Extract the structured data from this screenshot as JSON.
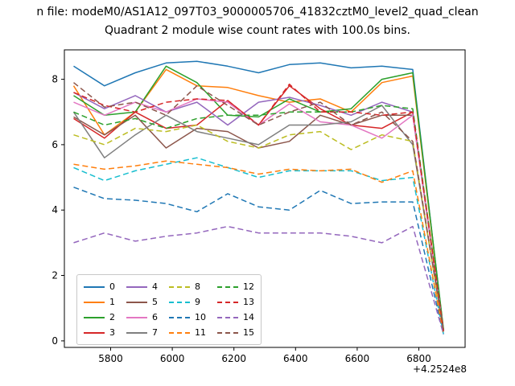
{
  "chart_data": {
    "type": "line",
    "title_line1": "n file: modeM0/AS1A12_097T03_9000005706_41832cztM0_level2_quad_clean",
    "title_line2": "Quadrant 2 module wise count rates with 100.0s bins.",
    "xlabel": "",
    "ylabel": "",
    "xlim": [
      5650,
      6950
    ],
    "ylim": [
      -0.2,
      8.9
    ],
    "xticks": [
      5800,
      6000,
      6200,
      6400,
      6600,
      6800
    ],
    "yticks": [
      0,
      2,
      4,
      6,
      8
    ],
    "x_offset_label": "+4.2524e8",
    "grid": false,
    "legend_position": "lower left",
    "x": [
      5680,
      5780,
      5880,
      5980,
      6080,
      6180,
      6280,
      6380,
      6480,
      6580,
      6680,
      6780,
      6880
    ],
    "series": [
      {
        "name": "0",
        "color": "#1f77b4",
        "dashed": false,
        "values": [
          8.4,
          7.8,
          8.2,
          8.5,
          8.55,
          8.4,
          8.2,
          8.45,
          8.5,
          8.35,
          8.4,
          8.3,
          0.3
        ]
      },
      {
        "name": "1",
        "color": "#ff7f0e",
        "dashed": false,
        "values": [
          7.8,
          6.3,
          7.0,
          8.3,
          7.8,
          7.75,
          7.5,
          7.3,
          7.4,
          7.0,
          7.9,
          8.1,
          0.3
        ]
      },
      {
        "name": "2",
        "color": "#2ca02c",
        "dashed": false,
        "values": [
          7.5,
          6.9,
          7.0,
          8.4,
          7.9,
          6.9,
          6.85,
          7.4,
          7.0,
          7.1,
          8.0,
          8.2,
          0.35
        ]
      },
      {
        "name": "3",
        "color": "#d62728",
        "dashed": false,
        "values": [
          6.8,
          6.2,
          7.0,
          6.5,
          6.6,
          7.35,
          6.6,
          7.8,
          7.1,
          6.6,
          6.5,
          7.0,
          0.3
        ]
      },
      {
        "name": "4",
        "color": "#9467bd",
        "dashed": false,
        "values": [
          7.6,
          7.1,
          7.5,
          7.0,
          7.3,
          6.6,
          7.3,
          7.45,
          7.2,
          6.9,
          7.3,
          7.0,
          0.3
        ]
      },
      {
        "name": "5",
        "color": "#8c564b",
        "dashed": false,
        "values": [
          6.85,
          6.3,
          6.9,
          5.9,
          6.5,
          6.4,
          5.9,
          6.1,
          6.9,
          6.6,
          6.9,
          6.9,
          0.3
        ]
      },
      {
        "name": "6",
        "color": "#e377c2",
        "dashed": false,
        "values": [
          7.3,
          6.9,
          7.3,
          7.0,
          7.4,
          7.3,
          6.6,
          7.25,
          6.7,
          6.6,
          6.2,
          6.9,
          0.3
        ]
      },
      {
        "name": "7",
        "color": "#7f7f7f",
        "dashed": false,
        "values": [
          7.0,
          5.6,
          6.3,
          6.9,
          6.4,
          6.2,
          6.0,
          6.6,
          6.6,
          6.7,
          7.2,
          6.0,
          0.3
        ]
      },
      {
        "name": "8",
        "color": "#bcbd22",
        "dashed": true,
        "values": [
          6.3,
          6.0,
          6.5,
          6.4,
          6.6,
          6.1,
          5.9,
          6.3,
          6.4,
          5.85,
          6.3,
          6.1,
          0.25
        ]
      },
      {
        "name": "9",
        "color": "#17becf",
        "dashed": true,
        "values": [
          5.3,
          4.9,
          5.2,
          5.4,
          5.6,
          5.3,
          5.0,
          5.2,
          5.2,
          5.2,
          4.9,
          5.0,
          0.2
        ]
      },
      {
        "name": "10",
        "color": "#1f77b4",
        "dashed": true,
        "values": [
          4.7,
          4.35,
          4.3,
          4.2,
          3.95,
          4.5,
          4.1,
          4.0,
          4.6,
          4.2,
          4.25,
          4.25,
          0.2
        ]
      },
      {
        "name": "11",
        "color": "#ff7f0e",
        "dashed": true,
        "values": [
          5.4,
          5.25,
          5.35,
          5.5,
          5.4,
          5.3,
          5.1,
          5.25,
          5.2,
          5.25,
          4.85,
          5.2,
          0.2
        ]
      },
      {
        "name": "12",
        "color": "#2ca02c",
        "dashed": true,
        "values": [
          7.0,
          6.6,
          6.8,
          6.5,
          6.8,
          6.9,
          6.9,
          7.0,
          7.0,
          7.0,
          7.2,
          7.1,
          0.3
        ]
      },
      {
        "name": "13",
        "color": "#d62728",
        "dashed": true,
        "values": [
          7.6,
          7.2,
          7.0,
          7.3,
          7.4,
          7.35,
          6.6,
          7.85,
          7.0,
          7.0,
          6.9,
          7.0,
          0.3
        ]
      },
      {
        "name": "14",
        "color": "#9467bd",
        "dashed": true,
        "values": [
          3.0,
          3.3,
          3.05,
          3.2,
          3.3,
          3.5,
          3.3,
          3.3,
          3.3,
          3.2,
          3.0,
          3.5,
          0.2
        ]
      },
      {
        "name": "15",
        "color": "#8c564b",
        "dashed": true,
        "values": [
          7.9,
          7.15,
          7.3,
          6.9,
          7.8,
          7.2,
          6.6,
          7.0,
          7.3,
          6.6,
          7.0,
          6.1,
          0.3
        ]
      }
    ]
  }
}
